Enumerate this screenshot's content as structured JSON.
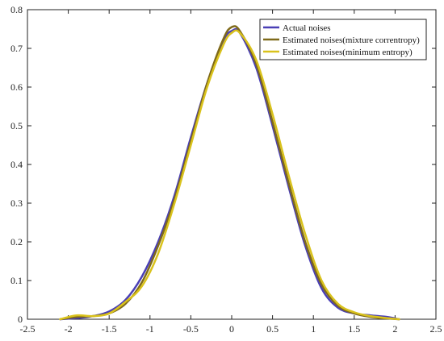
{
  "chart_data": {
    "type": "line",
    "title": "",
    "xlabel": "",
    "ylabel": "",
    "xlim": [
      -2.5,
      2.5
    ],
    "ylim": [
      0,
      0.8
    ],
    "xticks": [
      "-2.5",
      "-2",
      "-1.5",
      "-1",
      "-0.5",
      "0",
      "0.5",
      "1",
      "1.5",
      "2",
      "2.5"
    ],
    "yticks": [
      "0",
      "0.1",
      "0.2",
      "0.3",
      "0.4",
      "0.5",
      "0.6",
      "0.7",
      "0.8"
    ],
    "grid": false,
    "legend_position": "top-right",
    "series": [
      {
        "name": "Actual noises",
        "color": "#4a3fb5",
        "x": [
          -2.1,
          -1.9,
          -1.7,
          -1.5,
          -1.3,
          -1.1,
          -0.9,
          -0.7,
          -0.5,
          -0.3,
          -0.1,
          0.0,
          0.1,
          0.3,
          0.5,
          0.7,
          0.9,
          1.1,
          1.3,
          1.5,
          1.7,
          1.9,
          2.05
        ],
        "y": [
          0.0,
          0.003,
          0.008,
          0.02,
          0.05,
          0.11,
          0.2,
          0.32,
          0.47,
          0.61,
          0.72,
          0.745,
          0.74,
          0.65,
          0.5,
          0.34,
          0.19,
          0.08,
          0.03,
          0.015,
          0.01,
          0.006,
          0.0
        ]
      },
      {
        "name": "Estimated noises(mixture correntropy)",
        "color": "#7f6a1a",
        "x": [
          -2.1,
          -1.9,
          -1.7,
          -1.5,
          -1.3,
          -1.1,
          -0.9,
          -0.7,
          -0.5,
          -0.3,
          -0.1,
          0.0,
          0.1,
          0.3,
          0.5,
          0.7,
          0.9,
          1.1,
          1.3,
          1.5,
          1.7,
          1.9,
          2.05
        ],
        "y": [
          0.0,
          0.006,
          0.008,
          0.015,
          0.04,
          0.095,
          0.19,
          0.31,
          0.46,
          0.61,
          0.725,
          0.755,
          0.745,
          0.66,
          0.51,
          0.35,
          0.2,
          0.09,
          0.035,
          0.015,
          0.006,
          0.002,
          0.0
        ]
      },
      {
        "name": "Estimated noises(minimum entropy)",
        "color": "#d9c21c",
        "x": [
          -2.1,
          -1.9,
          -1.7,
          -1.5,
          -1.3,
          -1.1,
          -0.9,
          -0.7,
          -0.5,
          -0.3,
          -0.1,
          0.0,
          0.1,
          0.3,
          0.5,
          0.7,
          0.9,
          1.1,
          1.3,
          1.5,
          1.7,
          1.9,
          2.05
        ],
        "y": [
          0.0,
          0.01,
          0.008,
          0.015,
          0.045,
          0.085,
          0.17,
          0.3,
          0.45,
          0.6,
          0.71,
          0.74,
          0.74,
          0.67,
          0.53,
          0.37,
          0.22,
          0.1,
          0.04,
          0.018,
          0.008,
          0.003,
          0.0
        ]
      }
    ]
  }
}
